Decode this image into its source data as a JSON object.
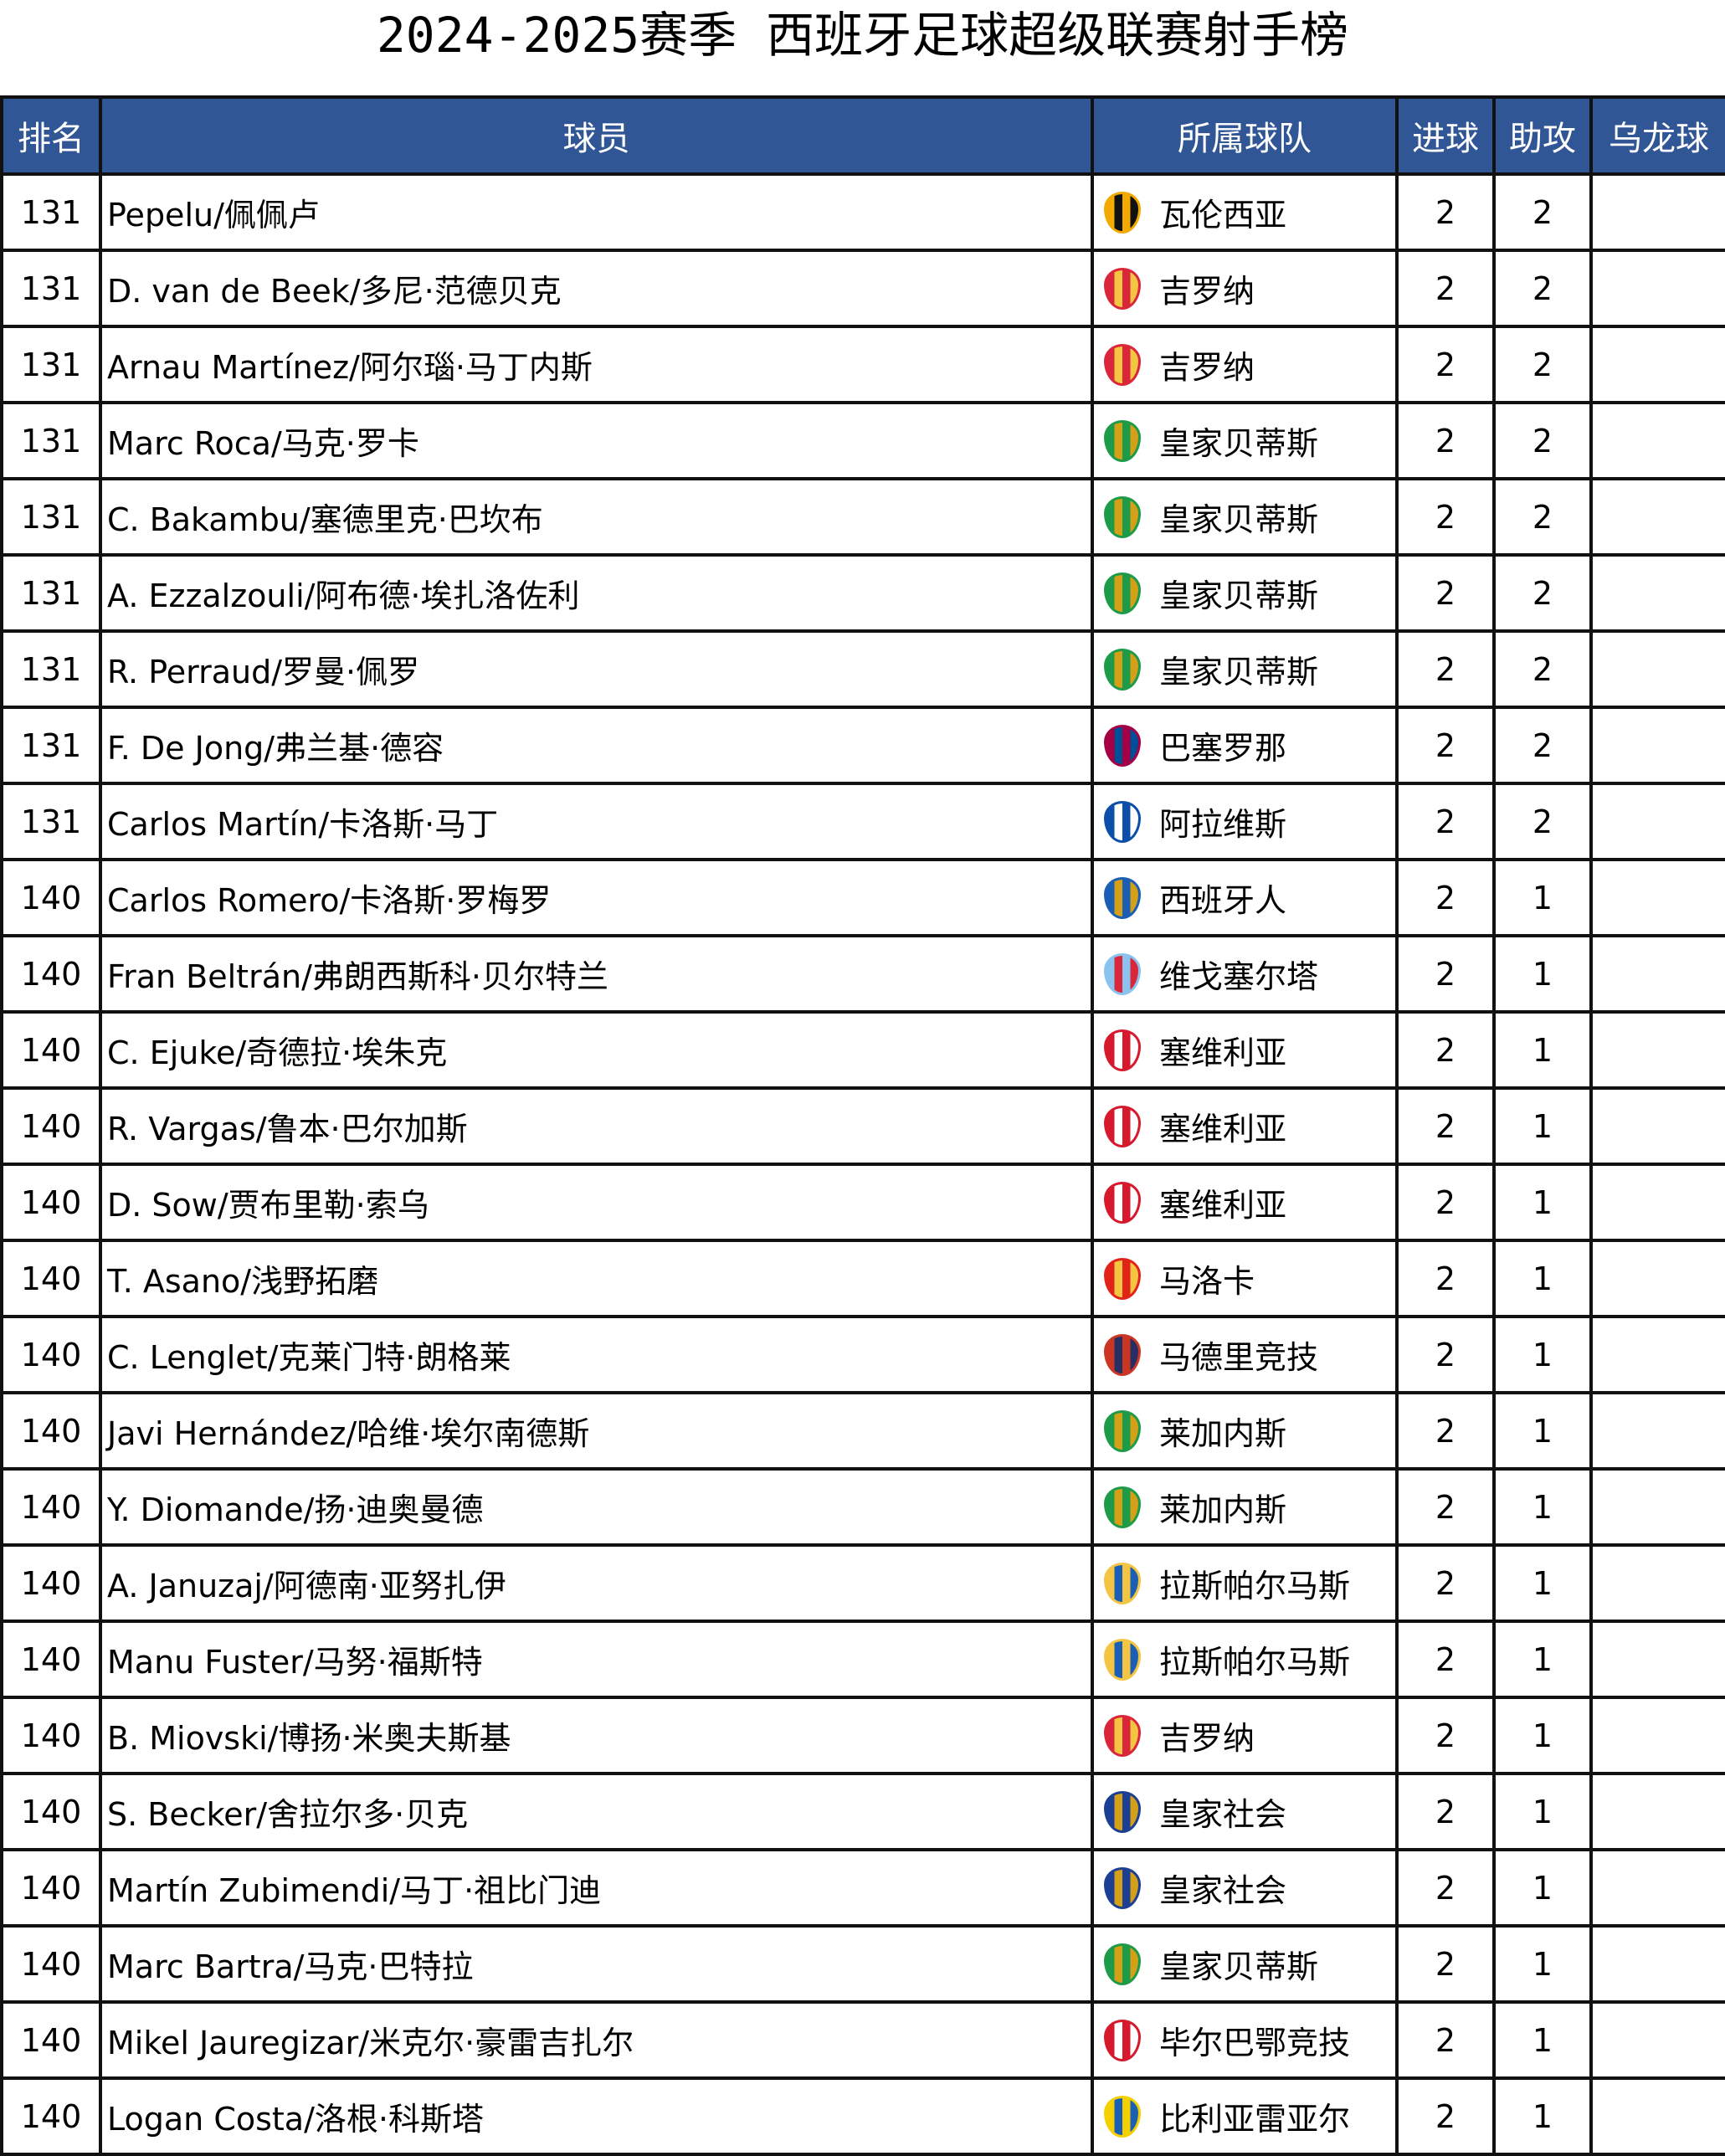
{
  "title": "2024-2025赛季  西班牙足球超级联赛射手榜",
  "header": {
    "rank": "排名",
    "player": "球员",
    "team": "所属球队",
    "goals": "进球",
    "assists": "助攻",
    "own_goals": "乌龙球"
  },
  "header_color": "#315695",
  "rows": [
    {
      "rank": "131",
      "player": "Pepelu/佩佩卢",
      "team": "瓦伦西亚",
      "badge": "valencia-badge",
      "color": "#f2a900",
      "color2": "#111111",
      "goals": "2",
      "assists": "2",
      "own_goals": ""
    },
    {
      "rank": "131",
      "player": "D. van de Beek/多尼·范德贝克",
      "team": "吉罗纳",
      "badge": "girona-badge",
      "color": "#d9263a",
      "color2": "#f4c542",
      "goals": "2",
      "assists": "2",
      "own_goals": ""
    },
    {
      "rank": "131",
      "player": "Arnau Martínez/阿尔瑙·马丁内斯",
      "team": "吉罗纳",
      "badge": "girona-badge",
      "color": "#d9263a",
      "color2": "#f4c542",
      "goals": "2",
      "assists": "2",
      "own_goals": ""
    },
    {
      "rank": "131",
      "player": "Marc Roca/马克·罗卡",
      "team": "皇家贝蒂斯",
      "badge": "betis-badge",
      "color": "#1e9b48",
      "color2": "#d4a017",
      "goals": "2",
      "assists": "2",
      "own_goals": ""
    },
    {
      "rank": "131",
      "player": "C. Bakambu/塞德里克·巴坎布",
      "team": "皇家贝蒂斯",
      "badge": "betis-badge",
      "color": "#1e9b48",
      "color2": "#d4a017",
      "goals": "2",
      "assists": "2",
      "own_goals": ""
    },
    {
      "rank": "131",
      "player": "A. Ezzalzouli/阿布德·埃扎洛佐利",
      "team": "皇家贝蒂斯",
      "badge": "betis-badge",
      "color": "#1e9b48",
      "color2": "#d4a017",
      "goals": "2",
      "assists": "2",
      "own_goals": ""
    },
    {
      "rank": "131",
      "player": "R. Perraud/罗曼·佩罗",
      "team": "皇家贝蒂斯",
      "badge": "betis-badge",
      "color": "#1e9b48",
      "color2": "#d4a017",
      "goals": "2",
      "assists": "2",
      "own_goals": ""
    },
    {
      "rank": "131",
      "player": "F. De Jong/弗兰基·德容",
      "team": "巴塞罗那",
      "badge": "barcelona-badge",
      "color": "#a50044",
      "color2": "#004d98",
      "goals": "2",
      "assists": "2",
      "own_goals": ""
    },
    {
      "rank": "131",
      "player": "Carlos Martín/卡洛斯·马丁",
      "team": "阿拉维斯",
      "badge": "alaves-badge",
      "color": "#0b4fa8",
      "color2": "#ffffff",
      "goals": "2",
      "assists": "2",
      "own_goals": ""
    },
    {
      "rank": "140",
      "player": "Carlos Romero/卡洛斯·罗梅罗",
      "team": "西班牙人",
      "badge": "espanyol-badge",
      "color": "#1b5fb4",
      "color2": "#d4a017",
      "goals": "2",
      "assists": "1",
      "own_goals": ""
    },
    {
      "rank": "140",
      "player": "Fran Beltrán/弗朗西斯科·贝尔特兰",
      "team": "维戈塞尔塔",
      "badge": "celta-badge",
      "color": "#8ac3ee",
      "color2": "#d9263a",
      "goals": "2",
      "assists": "1",
      "own_goals": ""
    },
    {
      "rank": "140",
      "player": "C. Ejuke/奇德拉·埃朱克",
      "team": "塞维利亚",
      "badge": "sevilla-badge",
      "color": "#d7192d",
      "color2": "#ffffff",
      "goals": "2",
      "assists": "1",
      "own_goals": ""
    },
    {
      "rank": "140",
      "player": "R. Vargas/鲁本·巴尔加斯",
      "team": "塞维利亚",
      "badge": "sevilla-badge",
      "color": "#d7192d",
      "color2": "#ffffff",
      "goals": "2",
      "assists": "1",
      "own_goals": ""
    },
    {
      "rank": "140",
      "player": "D. Sow/贾布里勒·索乌",
      "team": "塞维利亚",
      "badge": "sevilla-badge",
      "color": "#d7192d",
      "color2": "#ffffff",
      "goals": "2",
      "assists": "1",
      "own_goals": ""
    },
    {
      "rank": "140",
      "player": "T. Asano/浅野拓磨",
      "team": "马洛卡",
      "badge": "mallorca-badge",
      "color": "#e2231a",
      "color2": "#f4c542",
      "goals": "2",
      "assists": "1",
      "own_goals": ""
    },
    {
      "rank": "140",
      "player": "C. Lenglet/克莱门特·朗格莱",
      "team": "马德里竞技",
      "badge": "atletico-badge",
      "color": "#cb3524",
      "color2": "#272e61",
      "goals": "2",
      "assists": "1",
      "own_goals": ""
    },
    {
      "rank": "140",
      "player": "Javi Hernández/哈维·埃尔南德斯",
      "team": "莱加内斯",
      "badge": "leganes-badge",
      "color": "#1e9b48",
      "color2": "#d4a017",
      "goals": "2",
      "assists": "1",
      "own_goals": ""
    },
    {
      "rank": "140",
      "player": "Y. Diomande/扬·迪奥曼德",
      "team": "莱加内斯",
      "badge": "leganes-badge",
      "color": "#1e9b48",
      "color2": "#d4a017",
      "goals": "2",
      "assists": "1",
      "own_goals": ""
    },
    {
      "rank": "140",
      "player": "A. Januzaj/阿德南·亚努扎伊",
      "team": "拉斯帕尔马斯",
      "badge": "las-palmas-badge",
      "color": "#f4c542",
      "color2": "#1b5fb4",
      "goals": "2",
      "assists": "1",
      "own_goals": ""
    },
    {
      "rank": "140",
      "player": "Manu Fuster/马努·福斯特",
      "team": "拉斯帕尔马斯",
      "badge": "las-palmas-badge",
      "color": "#f4c542",
      "color2": "#1b5fb4",
      "goals": "2",
      "assists": "1",
      "own_goals": ""
    },
    {
      "rank": "140",
      "player": "B. Miovski/博扬·米奥夫斯基",
      "team": "吉罗纳",
      "badge": "girona-badge",
      "color": "#d9263a",
      "color2": "#f4c542",
      "goals": "2",
      "assists": "1",
      "own_goals": ""
    },
    {
      "rank": "140",
      "player": "S. Becker/舍拉尔多·贝克",
      "team": "皇家社会",
      "badge": "real-sociedad-badge",
      "color": "#1c3f94",
      "color2": "#d4a017",
      "goals": "2",
      "assists": "1",
      "own_goals": ""
    },
    {
      "rank": "140",
      "player": "Martín Zubimendi/马丁·祖比门迪",
      "team": "皇家社会",
      "badge": "real-sociedad-badge",
      "color": "#1c3f94",
      "color2": "#d4a017",
      "goals": "2",
      "assists": "1",
      "own_goals": ""
    },
    {
      "rank": "140",
      "player": "Marc Bartra/马克·巴特拉",
      "team": "皇家贝蒂斯",
      "badge": "betis-badge",
      "color": "#1e9b48",
      "color2": "#d4a017",
      "goals": "2",
      "assists": "1",
      "own_goals": ""
    },
    {
      "rank": "140",
      "player": "Mikel Jauregizar/米克尔·豪雷吉扎尔",
      "team": "毕尔巴鄂竞技",
      "badge": "athletic-badge",
      "color": "#d7192d",
      "color2": "#ffffff",
      "goals": "2",
      "assists": "1",
      "own_goals": ""
    },
    {
      "rank": "140",
      "player": "Logan Costa/洛根·科斯塔",
      "team": "比利亚雷亚尔",
      "badge": "villarreal-badge",
      "color": "#f5d000",
      "color2": "#1b5fb4",
      "goals": "2",
      "assists": "1",
      "own_goals": ""
    }
  ]
}
